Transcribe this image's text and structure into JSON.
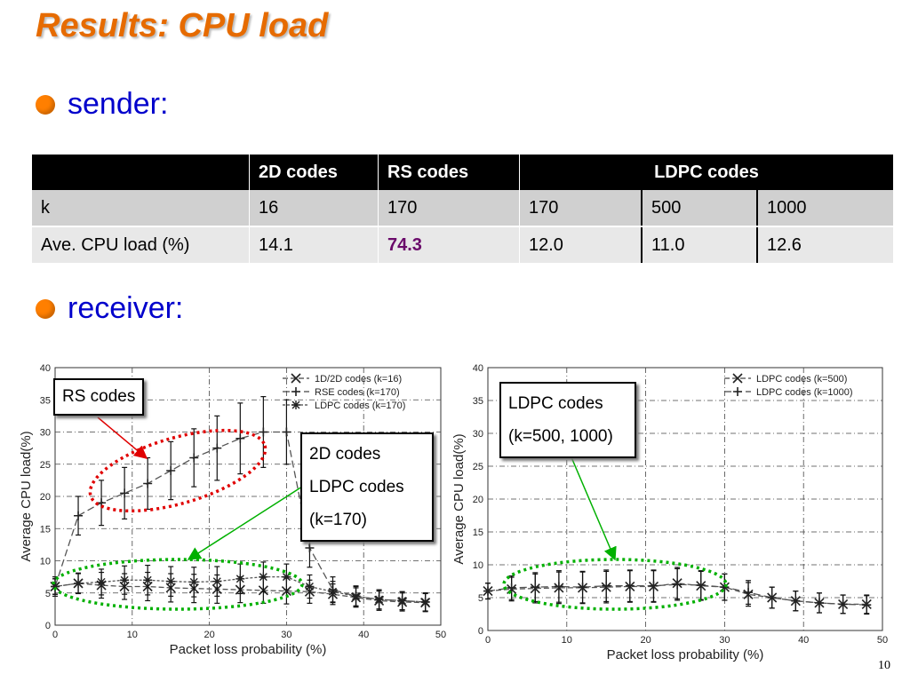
{
  "slide": {
    "title": "Results: CPU load",
    "bullet_sender": "sender:",
    "bullet_receiver": "receiver:",
    "page_number": "10"
  },
  "table": {
    "header": [
      "",
      "2D codes",
      "RS codes",
      "LDPC codes"
    ],
    "row_k": {
      "label": "k",
      "values": [
        "16",
        "170",
        "170",
        "500",
        "1000"
      ]
    },
    "row_load": {
      "label": "Ave. CPU load (%)",
      "values": [
        "14.1",
        "74.3",
        "12.0",
        "11.0",
        "12.6"
      ]
    }
  },
  "callouts": {
    "rs": "RS codes",
    "mid_1": "2D codes",
    "mid_2": "LDPC codes",
    "mid_3": "(k=170)",
    "right_1": "LDPC codes",
    "right_2": "(k=500, 1000)"
  },
  "colors": {
    "title": "#e66b00",
    "bullet_text": "#0000cc",
    "highlight": "#6a0a6a",
    "red_ellipse": "#e00000",
    "green_ellipse": "#00b000"
  },
  "chart_data": [
    {
      "type": "line",
      "xlabel": "Packet loss probability (%)",
      "ylabel": "Average CPU load(%)",
      "xlim": [
        0,
        50
      ],
      "ylim": [
        0,
        40
      ],
      "xticks": [
        0,
        10,
        20,
        30,
        40,
        50
      ],
      "yticks": [
        0,
        5,
        10,
        15,
        20,
        25,
        30,
        35,
        40
      ],
      "grid": true,
      "legend_position": "top-right",
      "series": [
        {
          "name": "1D/2D codes (k=16)",
          "marker": "x",
          "dash": "6,3",
          "x": [
            0,
            3,
            6,
            9,
            12,
            15,
            18,
            21,
            24,
            27,
            30,
            33,
            36,
            39,
            42,
            45,
            48
          ],
          "y": [
            6.0,
            6.5,
            6.2,
            6.0,
            6.0,
            5.8,
            5.7,
            5.6,
            5.5,
            5.4,
            5.3,
            5.2,
            4.8,
            4.3,
            3.8,
            3.6,
            3.5
          ],
          "err": [
            1.2,
            1.5,
            2.0,
            2.0,
            2.2,
            2.2,
            2.2,
            2.2,
            2.0,
            2.0,
            2.0,
            1.8,
            1.6,
            1.5,
            1.5,
            1.4,
            1.4
          ]
        },
        {
          "name": "RSE codes (k=170)",
          "marker": "+",
          "dash": "8,4",
          "x": [
            0,
            3,
            6,
            9,
            12,
            15,
            18,
            21,
            24,
            27,
            30,
            33,
            36,
            39,
            42,
            45,
            48
          ],
          "y": [
            6,
            17,
            19,
            20.5,
            22,
            24,
            26,
            27.5,
            29,
            30,
            30,
            12,
            5.5,
            4.5,
            4,
            3.8,
            3.6
          ],
          "err": [
            1.5,
            3,
            3.5,
            4,
            4,
            4.5,
            4.5,
            5,
            5.5,
            5.5,
            5,
            3,
            2,
            1.6,
            1.5,
            1.4,
            1.4
          ]
        },
        {
          "name": "LDPC codes (k=170)",
          "marker": "*",
          "dash": "3,2",
          "x": [
            0,
            3,
            6,
            9,
            12,
            15,
            18,
            21,
            24,
            27,
            30,
            33,
            36,
            39,
            42,
            45,
            48
          ],
          "y": [
            6.0,
            6.5,
            6.7,
            7.0,
            7.0,
            6.8,
            6.7,
            6.8,
            7.2,
            7.5,
            7.5,
            6.0,
            5.2,
            4.5,
            4.0,
            3.8,
            3.6
          ],
          "err": [
            1.2,
            1.6,
            2.0,
            2.2,
            2.3,
            2.3,
            2.3,
            2.3,
            2.3,
            2.3,
            2.0,
            1.8,
            1.6,
            1.5,
            1.5,
            1.4,
            1.4
          ]
        }
      ]
    },
    {
      "type": "line",
      "xlabel": "Packet loss probability (%)",
      "ylabel": "Average CPU load(%)",
      "xlim": [
        0,
        50
      ],
      "ylim": [
        0,
        40
      ],
      "xticks": [
        0,
        10,
        20,
        30,
        40,
        50
      ],
      "yticks": [
        0,
        5,
        10,
        15,
        20,
        25,
        30,
        35,
        40
      ],
      "grid": true,
      "legend_position": "top-right",
      "series": [
        {
          "name": "LDPC codes (k=500)",
          "marker": "x",
          "dash": "6,3",
          "x": [
            0,
            3,
            6,
            9,
            12,
            15,
            18,
            21,
            24,
            27,
            30,
            33,
            36,
            39,
            42,
            45,
            48
          ],
          "y": [
            6.0,
            6.3,
            6.4,
            6.5,
            6.5,
            6.6,
            6.7,
            6.7,
            7.2,
            6.8,
            6.6,
            5.5,
            5.0,
            4.5,
            4.2,
            4.0,
            4.0
          ],
          "err": [
            1.2,
            1.8,
            2.2,
            2.4,
            2.4,
            2.4,
            2.4,
            2.4,
            2.4,
            2.2,
            2.0,
            1.8,
            1.6,
            1.5,
            1.5,
            1.4,
            1.4
          ]
        },
        {
          "name": "LDPC codes (k=1000)",
          "marker": "+",
          "dash": "8,4",
          "x": [
            0,
            3,
            6,
            9,
            12,
            15,
            18,
            21,
            24,
            27,
            30,
            33,
            36,
            39,
            42,
            45,
            48
          ],
          "y": [
            6.0,
            6.5,
            6.6,
            6.7,
            6.6,
            6.8,
            6.8,
            6.8,
            7.0,
            6.9,
            6.6,
            5.8,
            5.0,
            4.5,
            4.2,
            4.0,
            3.9
          ],
          "err": [
            1.2,
            1.8,
            2.2,
            2.4,
            2.4,
            2.4,
            2.4,
            2.4,
            2.4,
            2.2,
            2.0,
            1.8,
            1.6,
            1.5,
            1.5,
            1.4,
            1.4
          ]
        }
      ]
    }
  ]
}
